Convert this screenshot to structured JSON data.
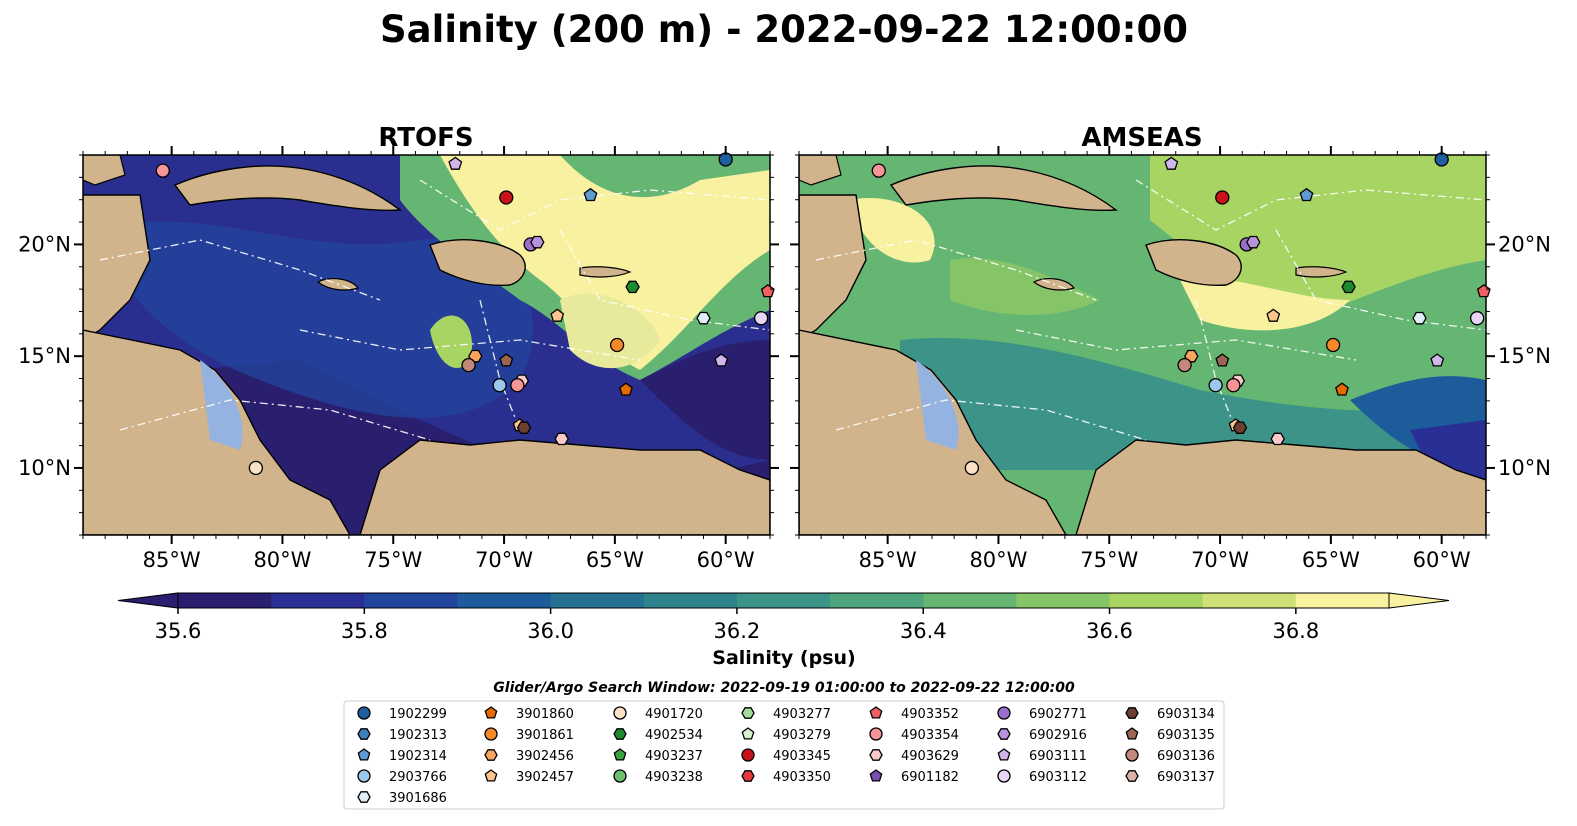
{
  "figure": {
    "title": "Salinity (200 m) - 2022-09-22 12:00:00"
  },
  "panels": [
    {
      "title": "RTOFS"
    },
    {
      "title": "AMSEAS"
    }
  ],
  "colorbar": {
    "label": "Salinity (psu)",
    "ticks": [
      "35.6",
      "35.8",
      "36.0",
      "36.2",
      "36.4",
      "36.6",
      "36.8"
    ],
    "colors": [
      "#2a1e6e",
      "#2a2f95",
      "#22459e",
      "#1d5c9b",
      "#256f93",
      "#2d828c",
      "#3c9387",
      "#4ea57d",
      "#65b672",
      "#85c568",
      "#a8d464",
      "#cde178",
      "#f8f1a0"
    ]
  },
  "axes": {
    "lon_ticks": [
      "85°W",
      "80°W",
      "75°W",
      "70°W",
      "65°W",
      "60°W"
    ],
    "lat_ticks": [
      "20°N",
      "15°N",
      "10°N"
    ]
  },
  "legend": {
    "title": "Glider/Argo Search Window: 2022-09-19 01:00:00 to 2022-09-22 12:00:00",
    "entries": [
      {
        "label": "1902299",
        "color": "#1f5fa0",
        "marker": "circle"
      },
      {
        "label": "1902313",
        "color": "#3f7fbd",
        "marker": "hexagon"
      },
      {
        "label": "1902314",
        "color": "#5e9bd3",
        "marker": "pentagon"
      },
      {
        "label": "2903766",
        "color": "#9cc8ee",
        "marker": "circle"
      },
      {
        "label": "3901686",
        "color": "#e1eefa",
        "marker": "hexagon"
      },
      {
        "label": "3901860",
        "color": "#e56a00",
        "marker": "pentagon"
      },
      {
        "label": "3901861",
        "color": "#f68a2a",
        "marker": "circle"
      },
      {
        "label": "3902456",
        "color": "#faa55e",
        "marker": "hexagon"
      },
      {
        "label": "3902457",
        "color": "#fcc58d",
        "marker": "pentagon"
      },
      {
        "label": "4901720",
        "color": "#fde1c6",
        "marker": "circle"
      },
      {
        "label": "4902534",
        "color": "#1e8a2e",
        "marker": "hexagon"
      },
      {
        "label": "4903237",
        "color": "#3aa33f",
        "marker": "pentagon"
      },
      {
        "label": "4903238",
        "color": "#6cc26b",
        "marker": "circle"
      },
      {
        "label": "4903277",
        "color": "#a3dc9b",
        "marker": "hexagon"
      },
      {
        "label": "4903279",
        "color": "#d9f3d1",
        "marker": "pentagon"
      },
      {
        "label": "4903345",
        "color": "#c8131a",
        "marker": "circle"
      },
      {
        "label": "4903350",
        "color": "#e23a3e",
        "marker": "hexagon"
      },
      {
        "label": "4903352",
        "color": "#f05f62",
        "marker": "pentagon"
      },
      {
        "label": "4903354",
        "color": "#f59597",
        "marker": "circle"
      },
      {
        "label": "4903629",
        "color": "#fbc9c9",
        "marker": "hexagon"
      },
      {
        "label": "6901182",
        "color": "#7a4fb5",
        "marker": "pentagon"
      },
      {
        "label": "6902771",
        "color": "#9a6fcc",
        "marker": "circle"
      },
      {
        "label": "6902916",
        "color": "#b793dc",
        "marker": "hexagon"
      },
      {
        "label": "6903111",
        "color": "#d1b6ea",
        "marker": "pentagon"
      },
      {
        "label": "6903112",
        "color": "#e8d6f6",
        "marker": "circle"
      },
      {
        "label": "6903134",
        "color": "#6e3f30",
        "marker": "hexagon"
      },
      {
        "label": "6903135",
        "color": "#9a6552",
        "marker": "pentagon"
      },
      {
        "label": "6903136",
        "color": "#c2887a",
        "marker": "circle"
      },
      {
        "label": "6903137",
        "color": "#deb1a6",
        "marker": "hexagon"
      }
    ]
  },
  "floats": [
    {
      "id": "4903354",
      "lon": -85.4,
      "lat": 23.3
    },
    {
      "id": "6903111",
      "lon": -72.2,
      "lat": 23.6
    },
    {
      "id": "1902299",
      "lon": -60.0,
      "lat": 23.8
    },
    {
      "id": "4903345",
      "lon": -69.9,
      "lat": 22.1
    },
    {
      "id": "1902314",
      "lon": -66.1,
      "lat": 22.2
    },
    {
      "id": "6902771",
      "lon": -68.8,
      "lat": 20.0
    },
    {
      "id": "6902916",
      "lon": -68.5,
      "lat": 20.1
    },
    {
      "id": "4902534",
      "lon": -64.2,
      "lat": 18.1
    },
    {
      "id": "4903352",
      "lon": -58.1,
      "lat": 17.9
    },
    {
      "id": "3902457",
      "lon": -67.6,
      "lat": 16.8
    },
    {
      "id": "3901686",
      "lon": -61.0,
      "lat": 16.7
    },
    {
      "id": "6903112",
      "lon": -58.4,
      "lat": 16.7
    },
    {
      "id": "3901861",
      "lon": -64.9,
      "lat": 15.5
    },
    {
      "id": "3902456",
      "lon": -71.3,
      "lat": 15.0
    },
    {
      "id": "6903136",
      "lon": -71.6,
      "lat": 14.6
    },
    {
      "id": "6903135",
      "lon": -69.9,
      "lat": 14.8
    },
    {
      "id": "6903111",
      "lon": -60.2,
      "lat": 14.8
    },
    {
      "id": "4903629",
      "lon": -69.2,
      "lat": 13.9
    },
    {
      "id": "4903354",
      "lon": -69.4,
      "lat": 13.7
    },
    {
      "id": "2903766",
      "lon": -70.2,
      "lat": 13.7
    },
    {
      "id": "3901860",
      "lon": -64.5,
      "lat": 13.5
    },
    {
      "id": "3902457",
      "lon": -69.3,
      "lat": 11.9
    },
    {
      "id": "6903134",
      "lon": -69.1,
      "lat": 11.8
    },
    {
      "id": "4903629",
      "lon": -67.4,
      "lat": 11.3
    },
    {
      "id": "4901720",
      "lon": -81.2,
      "lat": 10.0
    }
  ],
  "chart_data": {
    "type": "heatmap",
    "title": "Salinity (200 m) - 2022-09-22 12:00:00",
    "variable": "Salinity (psu)",
    "panels": [
      "RTOFS",
      "AMSEAS"
    ],
    "xlim": [
      -89,
      -58
    ],
    "ylim": [
      7,
      24
    ],
    "x_ticks": [
      -85,
      -80,
      -75,
      -70,
      -65,
      -60
    ],
    "y_ticks": [
      10,
      15,
      20
    ],
    "color_range": [
      35.6,
      36.9
    ],
    "colorbar_ticks": [
      35.6,
      35.8,
      36.0,
      36.2,
      36.4,
      36.6,
      36.8
    ],
    "extend": "both",
    "legend_placement": "bottom-center"
  }
}
